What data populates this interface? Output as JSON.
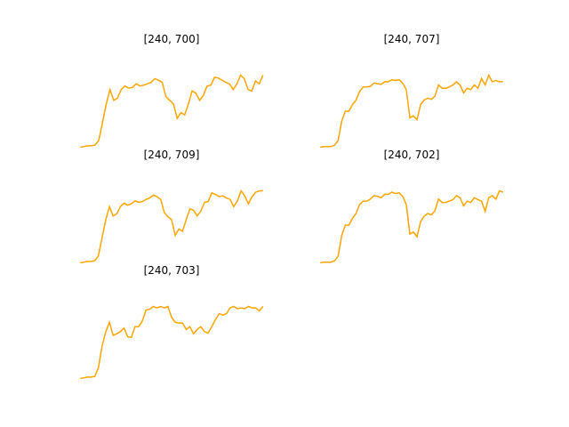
{
  "chart_data": [
    {
      "type": "line",
      "title": "[240, 700]",
      "color": "#ffa500",
      "values": [
        0.0,
        0.01,
        0.02,
        0.02,
        0.03,
        0.1,
        0.35,
        0.6,
        0.8,
        0.65,
        0.68,
        0.8,
        0.85,
        0.82,
        0.83,
        0.88,
        0.85,
        0.86,
        0.88,
        0.9,
        0.95,
        0.93,
        0.9,
        0.7,
        0.65,
        0.6,
        0.4,
        0.48,
        0.45,
        0.6,
        0.78,
        0.75,
        0.65,
        0.72,
        0.85,
        0.86,
        0.97,
        0.96,
        0.93,
        0.9,
        0.88,
        0.8,
        0.88,
        1.0,
        0.95,
        0.8,
        0.78,
        0.92,
        0.88,
        1.0
      ]
    },
    {
      "type": "line",
      "title": "[240, 707]",
      "color": "#ffa500",
      "values": [
        0.0,
        0.01,
        0.01,
        0.01,
        0.03,
        0.1,
        0.4,
        0.55,
        0.55,
        0.65,
        0.72,
        0.85,
        0.92,
        0.92,
        0.93,
        0.98,
        0.97,
        0.96,
        1.0,
        1.0,
        1.03,
        1.02,
        1.03,
        0.98,
        0.88,
        0.45,
        0.48,
        0.42,
        0.65,
        0.72,
        0.75,
        0.73,
        0.78,
        0.95,
        0.9,
        0.9,
        0.92,
        0.95,
        1.0,
        0.95,
        0.83,
        0.9,
        0.88,
        0.95,
        0.9,
        1.05,
        0.95,
        1.1,
        1.0,
        1.02,
        1.0,
        1.0
      ]
    },
    {
      "type": "line",
      "title": "[240, 709]",
      "color": "#ffa500",
      "values": [
        0.0,
        0.01,
        0.02,
        0.02,
        0.03,
        0.1,
        0.35,
        0.6,
        0.78,
        0.65,
        0.68,
        0.78,
        0.83,
        0.8,
        0.82,
        0.86,
        0.84,
        0.85,
        0.88,
        0.9,
        0.94,
        0.92,
        0.88,
        0.7,
        0.64,
        0.6,
        0.38,
        0.47,
        0.44,
        0.6,
        0.75,
        0.73,
        0.65,
        0.72,
        0.84,
        0.85,
        0.97,
        0.95,
        0.92,
        0.93,
        0.9,
        0.88,
        0.78,
        0.86,
        1.0,
        0.93,
        0.82,
        0.92,
        0.98,
        1.0,
        1.0
      ]
    },
    {
      "type": "line",
      "title": "[240, 702]",
      "color": "#ffa500",
      "values": [
        0.0,
        0.01,
        0.01,
        0.01,
        0.03,
        0.1,
        0.4,
        0.55,
        0.55,
        0.65,
        0.72,
        0.85,
        0.9,
        0.9,
        0.93,
        0.98,
        0.97,
        0.95,
        1.0,
        1.0,
        1.03,
        1.01,
        1.02,
        0.97,
        0.85,
        0.42,
        0.45,
        0.38,
        0.6,
        0.68,
        0.72,
        0.7,
        0.76,
        0.93,
        0.88,
        0.88,
        0.9,
        0.92,
        0.98,
        0.95,
        0.83,
        0.9,
        0.88,
        0.95,
        0.92,
        0.9,
        0.75,
        0.95,
        0.98,
        0.93,
        1.05,
        1.03
      ]
    },
    {
      "type": "line",
      "title": "[240, 703]",
      "color": "#ffa500",
      "values": [
        0.0,
        0.01,
        0.02,
        0.02,
        0.03,
        0.15,
        0.45,
        0.65,
        0.78,
        0.6,
        0.62,
        0.65,
        0.7,
        0.58,
        0.57,
        0.72,
        0.72,
        0.8,
        0.95,
        0.96,
        1.0,
        0.98,
        1.0,
        0.98,
        1.0,
        0.85,
        0.78,
        0.77,
        0.77,
        0.68,
        0.72,
        0.62,
        0.68,
        0.72,
        0.65,
        0.63,
        0.72,
        0.82,
        0.9,
        0.88,
        0.9,
        0.98,
        1.0,
        0.97,
        0.98,
        0.97,
        1.0,
        0.98,
        0.98,
        0.94,
        1.0
      ]
    }
  ]
}
